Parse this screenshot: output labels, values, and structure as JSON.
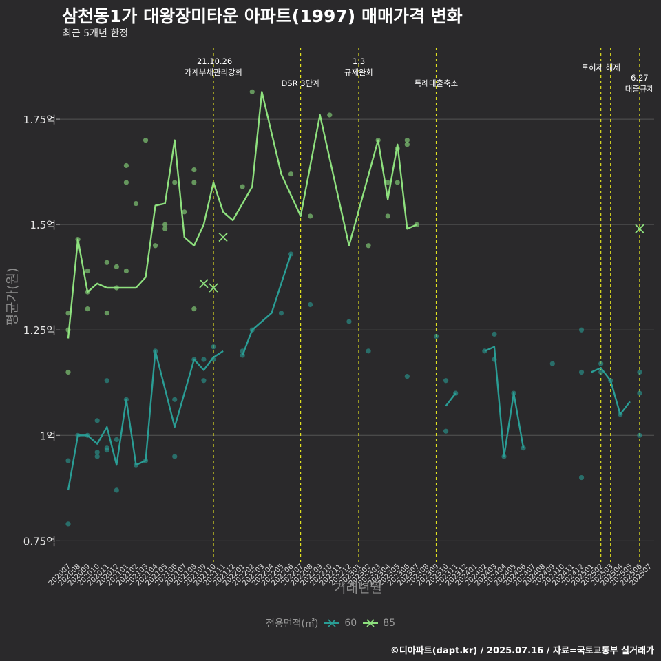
{
  "title": "삼천동1가 대왕장미타운 아파트(1997) 매매가격 변화",
  "subtitle": "최근 5개년 한정",
  "caption": "©디아파트(dapt.kr) / 2025.07.16 / 자료=국토교통부 실거래가",
  "colors": {
    "background": "#2a292b",
    "grid": "#555555",
    "series60": "#2a9d95",
    "series85": "#8ee07e",
    "event_line": "#e0e020"
  },
  "chart_data": {
    "type": "line",
    "xlabel": "거래년월",
    "ylabel": "평균가(원)",
    "ylim": [
      0.7,
      1.92
    ],
    "yticks": [
      {
        "value": 0.75,
        "label": "0.75억"
      },
      {
        "value": 1.0,
        "label": "1억"
      },
      {
        "value": 1.25,
        "label": "1.25억"
      },
      {
        "value": 1.5,
        "label": "1.5억"
      },
      {
        "value": 1.75,
        "label": "1.75억"
      }
    ],
    "x_labels": [
      "202007",
      "202008",
      "202009",
      "202010",
      "202011",
      "202012",
      "202101",
      "202102",
      "202103",
      "202104",
      "202105",
      "202106",
      "202107",
      "202108",
      "202109",
      "202110",
      "202111",
      "202112",
      "202201",
      "202202",
      "202203",
      "202204",
      "202205",
      "202206",
      "202207",
      "202208",
      "202209",
      "202210",
      "202211",
      "202212",
      "202301",
      "202302",
      "202303",
      "202304",
      "202305",
      "202306",
      "202307",
      "202308",
      "202309",
      "202310",
      "202311",
      "202312",
      "202401",
      "202402",
      "202403",
      "202404",
      "202405",
      "202406",
      "202407",
      "202408",
      "202409",
      "202410",
      "202411",
      "202412",
      "202501",
      "202502",
      "202503",
      "202504",
      "202505",
      "202506",
      "202507"
    ],
    "legend_title": "전용면적(㎡)",
    "series": [
      {
        "name": "60",
        "line": [
          [
            [
              "202007",
              0.87
            ],
            [
              "202008",
              1.0
            ],
            [
              "202009",
              1.0
            ],
            [
              "202010",
              0.98
            ],
            [
              "202011",
              1.02
            ],
            [
              "202012",
              0.93
            ],
            [
              "202101",
              1.085
            ],
            [
              "202102",
              0.93
            ],
            [
              "202103",
              0.94
            ],
            [
              "202104",
              1.2
            ],
            [
              "202105",
              1.11
            ],
            [
              "202106",
              1.02
            ],
            [
              "202107",
              1.1
            ],
            [
              "202108",
              1.18
            ],
            [
              "202109",
              1.155
            ],
            [
              "202110",
              1.185
            ],
            [
              "202111",
              1.2
            ]
          ],
          [
            [
              "202201",
              1.19
            ],
            [
              "202202",
              1.25
            ],
            [
              "202204",
              1.29
            ],
            [
              "202206",
              1.43
            ]
          ],
          [
            [
              "202310",
              1.07
            ],
            [
              "202311",
              1.1
            ]
          ],
          [
            [
              "202402",
              1.2
            ],
            [
              "202403",
              1.21
            ],
            [
              "202404",
              0.95
            ],
            [
              "202405",
              1.1
            ],
            [
              "202406",
              0.97
            ]
          ],
          [
            [
              "202501",
              1.15
            ],
            [
              "202502",
              1.16
            ],
            [
              "202503",
              1.13
            ],
            [
              "202504",
              1.05
            ],
            [
              "202505",
              1.08
            ]
          ]
        ],
        "points": [
          [
            "202007",
            0.94
          ],
          [
            "202007",
            0.79
          ],
          [
            "202008",
            1.0
          ],
          [
            "202009",
            1.0
          ],
          [
            "202010",
            0.95
          ],
          [
            "202010",
            0.96
          ],
          [
            "202010",
            1.035
          ],
          [
            "202011",
            1.13
          ],
          [
            "202011",
            0.965
          ],
          [
            "202011",
            0.97
          ],
          [
            "202012",
            0.99
          ],
          [
            "202012",
            0.87
          ],
          [
            "202101",
            1.085
          ],
          [
            "202102",
            0.93
          ],
          [
            "202103",
            0.94
          ],
          [
            "202104",
            1.2
          ],
          [
            "202106",
            1.085
          ],
          [
            "202106",
            0.95
          ],
          [
            "202108",
            1.18
          ],
          [
            "202109",
            1.18
          ],
          [
            "202109",
            1.13
          ],
          [
            "202110",
            1.21
          ],
          [
            "202110",
            1.18
          ],
          [
            "202201",
            1.2
          ],
          [
            "202201",
            1.19
          ],
          [
            "202202",
            1.25
          ],
          [
            "202205",
            1.29
          ],
          [
            "202206",
            1.43
          ],
          [
            "202208",
            1.31
          ],
          [
            "202212",
            1.27
          ],
          [
            "202302",
            1.2
          ],
          [
            "202306",
            1.14
          ],
          [
            "202309",
            1.235
          ],
          [
            "202310",
            1.13
          ],
          [
            "202310",
            1.01
          ],
          [
            "202311",
            1.1
          ],
          [
            "202402",
            1.2
          ],
          [
            "202403",
            1.24
          ],
          [
            "202403",
            1.18
          ],
          [
            "202404",
            0.95
          ],
          [
            "202405",
            1.1
          ],
          [
            "202406",
            0.97
          ],
          [
            "202409",
            1.17
          ],
          [
            "202412",
            1.25
          ],
          [
            "202412",
            1.15
          ],
          [
            "202412",
            0.9
          ],
          [
            "202502",
            1.15
          ],
          [
            "202502",
            1.17
          ],
          [
            "202503",
            1.13
          ],
          [
            "202504",
            1.05
          ],
          [
            "202506",
            1.15
          ],
          [
            "202506",
            1.1
          ],
          [
            "202506",
            1.0
          ]
        ],
        "markers": []
      },
      {
        "name": "85",
        "line": [
          [
            [
              "202007",
              1.23
            ],
            [
              "202008",
              1.465
            ],
            [
              "202009",
              1.34
            ],
            [
              "202010",
              1.36
            ],
            [
              "202011",
              1.35
            ],
            [
              "202012",
              1.35
            ],
            [
              "202102",
              1.35
            ],
            [
              "202103",
              1.375
            ],
            [
              "202104",
              1.545
            ],
            [
              "202105",
              1.55
            ],
            [
              "202106",
              1.7
            ],
            [
              "202107",
              1.47
            ],
            [
              "202108",
              1.45
            ],
            [
              "202109",
              1.5
            ],
            [
              "202110",
              1.6
            ],
            [
              "202111",
              1.53
            ],
            [
              "202112",
              1.51
            ],
            [
              "202202",
              1.59
            ],
            [
              "202203",
              1.815
            ],
            [
              "202205",
              1.62
            ],
            [
              "202207",
              1.52
            ],
            [
              "202209",
              1.76
            ],
            [
              "202212",
              1.45
            ],
            [
              "202303",
              1.7
            ],
            [
              "202304",
              1.56
            ],
            [
              "202305",
              1.69
            ],
            [
              "202306",
              1.49
            ],
            [
              "202307",
              1.5
            ]
          ]
        ],
        "points": [
          [
            "202007",
            1.29
          ],
          [
            "202007",
            1.25
          ],
          [
            "202007",
            1.15
          ],
          [
            "202008",
            1.465
          ],
          [
            "202009",
            1.39
          ],
          [
            "202009",
            1.34
          ],
          [
            "202009",
            1.3
          ],
          [
            "202011",
            1.41
          ],
          [
            "202011",
            1.29
          ],
          [
            "202012",
            1.4
          ],
          [
            "202012",
            1.35
          ],
          [
            "202101",
            1.64
          ],
          [
            "202101",
            1.6
          ],
          [
            "202101",
            1.39
          ],
          [
            "202102",
            1.55
          ],
          [
            "202103",
            1.7
          ],
          [
            "202104",
            1.45
          ],
          [
            "202105",
            1.5
          ],
          [
            "202105",
            1.49
          ],
          [
            "202106",
            1.6
          ],
          [
            "202107",
            1.53
          ],
          [
            "202108",
            1.63
          ],
          [
            "202108",
            1.6
          ],
          [
            "202108",
            1.3
          ],
          [
            "202201",
            1.59
          ],
          [
            "202202",
            1.815
          ],
          [
            "202206",
            1.62
          ],
          [
            "202208",
            1.52
          ],
          [
            "202210",
            1.76
          ],
          [
            "202302",
            1.45
          ],
          [
            "202303",
            1.7
          ],
          [
            "202304",
            1.6
          ],
          [
            "202304",
            1.52
          ],
          [
            "202305",
            1.68
          ],
          [
            "202305",
            1.6
          ],
          [
            "202306",
            1.7
          ],
          [
            "202306",
            1.69
          ],
          [
            "202307",
            1.5
          ]
        ],
        "markers": [
          [
            "202109",
            1.36
          ],
          [
            "202110",
            1.35
          ],
          [
            "202111",
            1.47
          ],
          [
            "202506",
            1.49
          ]
        ]
      }
    ],
    "events": [
      {
        "x": "202110",
        "lines": [
          "'21.10.26",
          "가계부채관리강화"
        ]
      },
      {
        "x": "202207",
        "lines": [
          "DSR 3단계"
        ]
      },
      {
        "x": "202301",
        "lines": [
          "1.3",
          "규제완화"
        ]
      },
      {
        "x": "202309",
        "lines": [
          "특례대출축소"
        ]
      },
      {
        "x": "202502",
        "lines": [
          "토허제 해제"
        ]
      },
      {
        "x": "202503",
        "lines": []
      },
      {
        "x": "202506",
        "lines": [
          "6.27",
          "대출규제"
        ]
      }
    ]
  }
}
